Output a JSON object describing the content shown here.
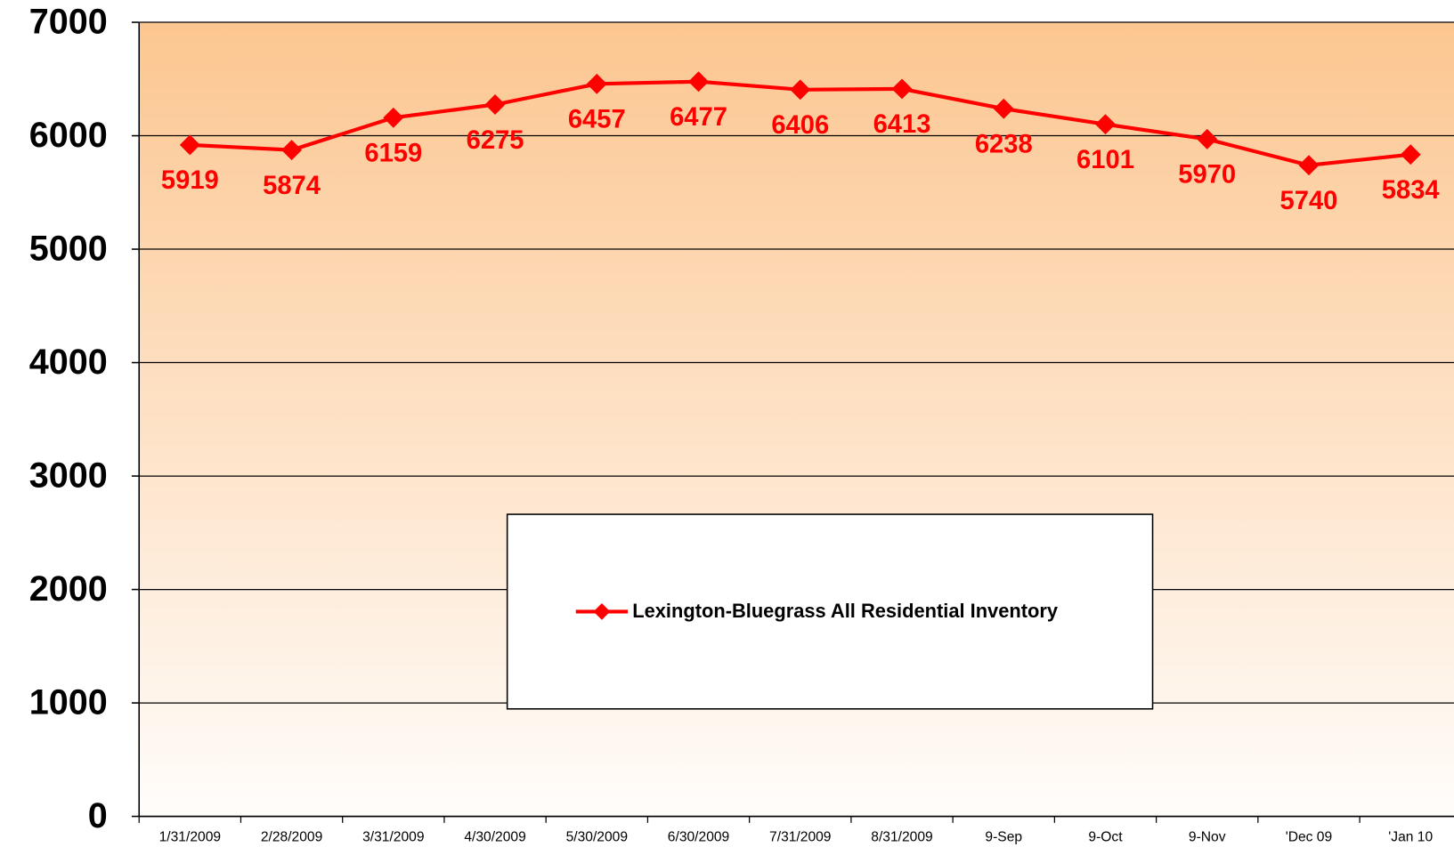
{
  "chart_data": {
    "type": "line",
    "categories": [
      "1/31/2009",
      "2/28/2009",
      "3/31/2009",
      "4/30/2009",
      "5/30/2009",
      "6/30/2009",
      "7/31/2009",
      "8/31/2009",
      "9-Sep",
      "9-Oct",
      "9-Nov",
      "'Dec 09",
      "'Jan 10"
    ],
    "series": [
      {
        "name": "Lexington-Bluegrass All Residential Inventory",
        "color": "#ff0000",
        "values": [
          5919,
          5874,
          6159,
          6275,
          6457,
          6477,
          6406,
          6413,
          6238,
          6101,
          5970,
          5740,
          5834
        ]
      }
    ],
    "ylim": [
      0,
      7000
    ],
    "yticks": [
      0,
      1000,
      2000,
      3000,
      4000,
      5000,
      6000,
      7000
    ],
    "grid": true,
    "legend": "center"
  }
}
